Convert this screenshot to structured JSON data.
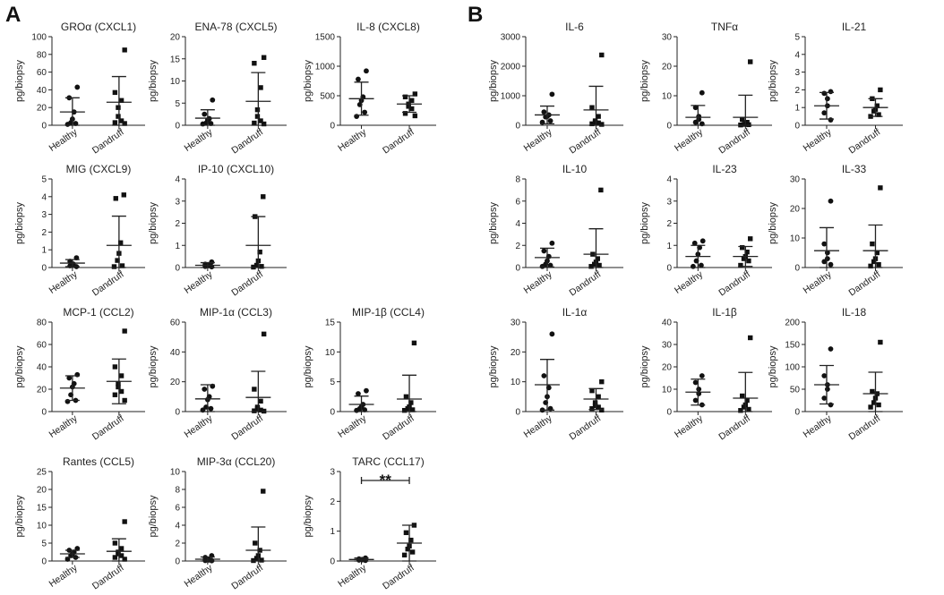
{
  "figure": {
    "panel_labels": [
      "A",
      "B"
    ],
    "y_label": "pg/biopsy",
    "groups": [
      "Healthy",
      "Dandruff"
    ]
  },
  "chart_data": [
    {
      "type": "scatter",
      "title": "GROα (CXCL1)",
      "ylabel": "pg/biopsy",
      "categories": [
        "Healthy",
        "Dandruff"
      ],
      "ylim": [
        0,
        100
      ],
      "yticks": [
        0,
        20,
        40,
        60,
        80,
        100
      ],
      "series": [
        {
          "name": "Healthy",
          "values": [
            43,
            31,
            15,
            7,
            3,
            2,
            1
          ],
          "mean": 15,
          "sd": 16
        },
        {
          "name": "Dandruff",
          "values": [
            85,
            37,
            28,
            20,
            10,
            5,
            3,
            2
          ],
          "mean": 26,
          "sd": 29
        }
      ]
    },
    {
      "type": "scatter",
      "title": "ENA-78 (CXCL5)",
      "ylabel": "pg/biopsy",
      "categories": [
        "Healthy",
        "Dandruff"
      ],
      "ylim": [
        0,
        20
      ],
      "yticks": [
        0,
        5,
        10,
        15,
        20
      ],
      "series": [
        {
          "name": "Healthy",
          "values": [
            5.7,
            2.5,
            1.5,
            1.2,
            0.5,
            0.4,
            0.3
          ],
          "mean": 1.6,
          "sd": 1.9
        },
        {
          "name": "Dandruff",
          "values": [
            15.3,
            14,
            8.5,
            3.5,
            2,
            1,
            0.5,
            0.3
          ],
          "mean": 5.4,
          "sd": 6.5
        }
      ]
    },
    {
      "type": "scatter",
      "title": "IL-8 (CXCL8)",
      "ylabel": "pg/biopsy",
      "categories": [
        "Healthy",
        "Dandruff"
      ],
      "ylim": [
        0,
        1500
      ],
      "yticks": [
        0,
        500,
        1000,
        1500
      ],
      "series": [
        {
          "name": "Healthy",
          "values": [
            920,
            780,
            480,
            420,
            350,
            220,
            150
          ],
          "mean": 450,
          "sd": 280
        },
        {
          "name": "Dandruff",
          "values": [
            530,
            480,
            420,
            360,
            320,
            280,
            200,
            160
          ],
          "mean": 360,
          "sd": 140
        }
      ]
    },
    {
      "type": "scatter",
      "title": "MIG (CXCL9)",
      "ylabel": "pg/biopsy",
      "categories": [
        "Healthy",
        "Dandruff"
      ],
      "ylim": [
        0,
        5
      ],
      "yticks": [
        0,
        1,
        2,
        3,
        4,
        5
      ],
      "series": [
        {
          "name": "Healthy",
          "values": [
            0.55,
            0.35,
            0.2,
            0.15,
            0.1,
            0.05
          ],
          "mean": 0.25,
          "sd": 0.2
        },
        {
          "name": "Dandruff",
          "values": [
            4.1,
            3.9,
            1.4,
            0.8,
            0.4,
            0.1,
            0.05
          ],
          "mean": 1.25,
          "sd": 1.65
        }
      ]
    },
    {
      "type": "scatter",
      "title": "IP-10 (CXCL10)",
      "ylabel": "pg/biopsy",
      "categories": [
        "Healthy",
        "Dandruff"
      ],
      "ylim": [
        0,
        4
      ],
      "yticks": [
        0,
        1,
        2,
        3,
        4
      ],
      "series": [
        {
          "name": "Healthy",
          "values": [
            0.25,
            0.15,
            0.1,
            0.08,
            0.05,
            0.03
          ],
          "mean": 0.1,
          "sd": 0.12
        },
        {
          "name": "Dandruff",
          "values": [
            3.2,
            2.3,
            0.7,
            0.3,
            0.1,
            0.05,
            0.02
          ],
          "mean": 1.0,
          "sd": 1.3
        }
      ]
    },
    {
      "type": "scatter",
      "title": "MCP-1 (CCL2)",
      "ylabel": "pg/biopsy",
      "categories": [
        "Healthy",
        "Dandruff"
      ],
      "ylim": [
        0,
        80
      ],
      "yticks": [
        0,
        20,
        40,
        60,
        80
      ],
      "series": [
        {
          "name": "Healthy",
          "values": [
            33,
            30,
            25,
            22,
            15,
            10,
            9
          ],
          "mean": 21,
          "sd": 11
        },
        {
          "name": "Dandruff",
          "values": [
            72,
            40,
            32,
            25,
            22,
            18,
            15,
            10
          ],
          "mean": 27,
          "sd": 20
        }
      ]
    },
    {
      "type": "scatter",
      "title": "MIP-1α (CCL3)",
      "ylabel": "pg/biopsy",
      "categories": [
        "Healthy",
        "Dandruff"
      ],
      "ylim": [
        0,
        60
      ],
      "yticks": [
        0,
        20,
        40,
        60
      ],
      "series": [
        {
          "name": "Healthy",
          "values": [
            17,
            15,
            10,
            8,
            3,
            2,
            1
          ],
          "mean": 8.5,
          "sd": 9.5
        },
        {
          "name": "Dandruff",
          "values": [
            52,
            15,
            7,
            3,
            2,
            1,
            0.5,
            0.3
          ],
          "mean": 9.5,
          "sd": 17.5
        }
      ]
    },
    {
      "type": "scatter",
      "title": "MIP-1β (CCL4)",
      "ylabel": "pg/biopsy",
      "categories": [
        "Healthy",
        "Dandruff"
      ],
      "ylim": [
        0,
        15
      ],
      "yticks": [
        0,
        5,
        10,
        15
      ],
      "series": [
        {
          "name": "Healthy",
          "values": [
            3.5,
            3,
            1.2,
            0.8,
            0.5,
            0.3,
            0.2
          ],
          "mean": 1.2,
          "sd": 1.4
        },
        {
          "name": "Dandruff",
          "values": [
            11.5,
            2.5,
            1.5,
            0.8,
            0.5,
            0.3,
            0.2
          ],
          "mean": 2.1,
          "sd": 4.0
        }
      ]
    },
    {
      "type": "scatter",
      "title": "Rantes (CCL5)",
      "ylabel": "pg/biopsy",
      "categories": [
        "Healthy",
        "Dandruff"
      ],
      "ylim": [
        0,
        25
      ],
      "yticks": [
        0,
        5,
        10,
        15,
        20,
        25
      ],
      "series": [
        {
          "name": "Healthy",
          "values": [
            3.5,
            3,
            2.5,
            2,
            1.5,
            1,
            0.5
          ],
          "mean": 2,
          "sd": 1
        },
        {
          "name": "Dandruff",
          "values": [
            11,
            5,
            3.5,
            2.5,
            2,
            1.5,
            1,
            0.5
          ],
          "mean": 2.7,
          "sd": 3.5
        }
      ]
    },
    {
      "type": "scatter",
      "title": "MIP-3α (CCL20)",
      "ylabel": "pg/biopsy",
      "categories": [
        "Healthy",
        "Dandruff"
      ],
      "ylim": [
        0,
        10
      ],
      "yticks": [
        0,
        2,
        4,
        6,
        8,
        10
      ],
      "series": [
        {
          "name": "Healthy",
          "values": [
            0.6,
            0.4,
            0.2,
            0.1,
            0.05,
            0.03
          ],
          "mean": 0.2,
          "sd": 0.25
        },
        {
          "name": "Dandruff",
          "values": [
            7.8,
            2,
            1.2,
            0.6,
            0.3,
            0.1,
            0.05
          ],
          "mean": 1.2,
          "sd": 2.6
        }
      ]
    },
    {
      "type": "scatter",
      "title": "TARC (CCL17)",
      "ylabel": "pg/biopsy",
      "categories": [
        "Healthy",
        "Dandruff"
      ],
      "ylim": [
        0,
        3
      ],
      "yticks": [
        0,
        1,
        2,
        3
      ],
      "annotation": "**",
      "series": [
        {
          "name": "Healthy",
          "values": [
            0.1,
            0.07,
            0.05,
            0.04,
            0.03,
            0.02
          ],
          "mean": 0.05,
          "sd": 0.05
        },
        {
          "name": "Dandruff",
          "values": [
            1.2,
            0.95,
            0.7,
            0.5,
            0.4,
            0.3,
            0.2
          ],
          "mean": 0.6,
          "sd": 0.6
        }
      ]
    },
    {
      "type": "scatter",
      "title": "IL-6",
      "ylabel": "pg/biopsy",
      "categories": [
        "Healthy",
        "Dandruff"
      ],
      "ylim": [
        0,
        3000
      ],
      "yticks": [
        0,
        1000,
        2000,
        3000
      ],
      "series": [
        {
          "name": "Healthy",
          "values": [
            1050,
            450,
            350,
            300,
            280,
            150,
            100
          ],
          "mean": 350,
          "sd": 300
        },
        {
          "name": "Dandruff",
          "values": [
            2380,
            600,
            300,
            150,
            100,
            80,
            50,
            30
          ],
          "mean": 520,
          "sd": 800
        }
      ]
    },
    {
      "type": "scatter",
      "title": "TNFα",
      "ylabel": "pg/biopsy",
      "categories": [
        "Healthy",
        "Dandruff"
      ],
      "ylim": [
        0,
        30
      ],
      "yticks": [
        0,
        10,
        20,
        30
      ],
      "series": [
        {
          "name": "Healthy",
          "values": [
            11,
            6,
            3,
            2,
            1,
            0.5
          ],
          "mean": 2.7,
          "sd": 4
        },
        {
          "name": "Dandruff",
          "values": [
            21.5,
            2,
            1,
            0.5,
            0.3,
            0.2,
            0.1
          ],
          "mean": 2.7,
          "sd": 7.5
        }
      ]
    },
    {
      "type": "scatter",
      "title": "IL-21",
      "ylabel": "pg/biopsy",
      "categories": [
        "Healthy",
        "Dandruff"
      ],
      "ylim": [
        0,
        5
      ],
      "yticks": [
        0,
        1,
        2,
        3,
        4,
        5
      ],
      "series": [
        {
          "name": "Healthy",
          "values": [
            1.9,
            1.8,
            1.5,
            1.1,
            0.7,
            0.3
          ],
          "mean": 1.1,
          "sd": 0.75
        },
        {
          "name": "Dandruff",
          "values": [
            2,
            1.5,
            1.1,
            0.9,
            0.8,
            0.6,
            0.5
          ],
          "mean": 1.0,
          "sd": 0.5
        }
      ]
    },
    {
      "type": "scatter",
      "title": "IL-10",
      "ylabel": "pg/biopsy",
      "categories": [
        "Healthy",
        "Dandruff"
      ],
      "ylim": [
        0,
        8
      ],
      "yticks": [
        0,
        2,
        4,
        6,
        8
      ],
      "series": [
        {
          "name": "Healthy",
          "values": [
            2.2,
            1.5,
            1,
            0.6,
            0.3,
            0.2,
            0.1
          ],
          "mean": 0.9,
          "sd": 0.85
        },
        {
          "name": "Dandruff",
          "values": [
            7,
            1.2,
            0.8,
            0.5,
            0.3,
            0.2,
            0.1
          ],
          "mean": 1.2,
          "sd": 2.3
        }
      ]
    },
    {
      "type": "scatter",
      "title": "IL-23",
      "ylabel": "pg/biopsy",
      "categories": [
        "Healthy",
        "Dandruff"
      ],
      "ylim": [
        0,
        4
      ],
      "yticks": [
        0,
        1,
        2,
        3,
        4
      ],
      "series": [
        {
          "name": "Healthy",
          "values": [
            1.2,
            1.1,
            0.9,
            0.6,
            0.3,
            0.1,
            0.05
          ],
          "mean": 0.5,
          "sd": 0.5
        },
        {
          "name": "Dandruff",
          "values": [
            1.3,
            0.9,
            0.7,
            0.5,
            0.4,
            0.3,
            0.1
          ],
          "mean": 0.5,
          "sd": 0.45
        }
      ]
    },
    {
      "type": "scatter",
      "title": "IL-33",
      "ylabel": "pg/biopsy",
      "categories": [
        "Healthy",
        "Dandruff"
      ],
      "ylim": [
        0,
        30
      ],
      "yticks": [
        0,
        10,
        20,
        30
      ],
      "series": [
        {
          "name": "Healthy",
          "values": [
            22.5,
            8,
            5,
            3,
            2,
            1
          ],
          "mean": 5.7,
          "sd": 7.8
        },
        {
          "name": "Dandruff",
          "values": [
            27,
            8,
            5,
            3,
            2,
            1,
            0.5
          ],
          "mean": 5.7,
          "sd": 8.7
        }
      ]
    },
    {
      "type": "scatter",
      "title": "IL-1α",
      "ylabel": "pg/biopsy",
      "categories": [
        "Healthy",
        "Dandruff"
      ],
      "ylim": [
        0,
        30
      ],
      "yticks": [
        0,
        10,
        20,
        30
      ],
      "series": [
        {
          "name": "Healthy",
          "values": [
            26,
            12,
            8,
            5,
            3,
            1,
            0.5
          ],
          "mean": 9,
          "sd": 8.5
        },
        {
          "name": "Dandruff",
          "values": [
            10,
            7,
            5,
            3,
            2,
            1.5,
            1,
            0.5
          ],
          "mean": 4.2,
          "sd": 3.5
        }
      ]
    },
    {
      "type": "scatter",
      "title": "IL-1β",
      "ylabel": "pg/biopsy",
      "categories": [
        "Healthy",
        "Dandruff"
      ],
      "ylim": [
        0,
        40
      ],
      "yticks": [
        0,
        10,
        20,
        30,
        40
      ],
      "series": [
        {
          "name": "Healthy",
          "values": [
            16,
            13,
            10,
            8,
            5,
            3
          ],
          "mean": 8.7,
          "sd": 5.8
        },
        {
          "name": "Dandruff",
          "values": [
            33,
            7,
            5,
            3,
            2,
            1,
            0.5
          ],
          "mean": 6,
          "sd": 11.5
        }
      ]
    },
    {
      "type": "scatter",
      "title": "IL-18",
      "ylabel": "pg/biopsy",
      "categories": [
        "Healthy",
        "Dandruff"
      ],
      "ylim": [
        0,
        200
      ],
      "yticks": [
        0,
        50,
        100,
        150,
        200
      ],
      "series": [
        {
          "name": "Healthy",
          "values": [
            140,
            80,
            60,
            50,
            30,
            15
          ],
          "mean": 60,
          "sd": 43
        },
        {
          "name": "Dandruff",
          "values": [
            155,
            45,
            40,
            30,
            20,
            15,
            10
          ],
          "mean": 40,
          "sd": 48
        }
      ]
    }
  ]
}
